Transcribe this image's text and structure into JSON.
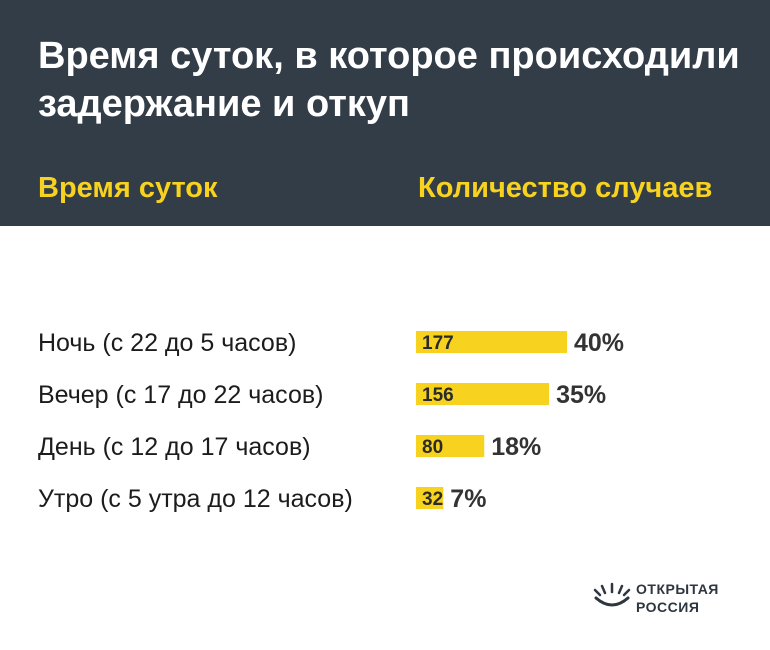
{
  "header": {
    "title": "Время суток, в которое происходили задержание и откуп",
    "col_left": "Время суток",
    "col_right": "Количество случаев"
  },
  "colors": {
    "header_bg": "#333d48",
    "accent": "#f7d21e",
    "bar": "#f7d21e",
    "text": "#1c1c1c"
  },
  "chart_data": {
    "type": "bar",
    "orientation": "horizontal",
    "categories": [
      "Ночь (с 22 до 5 часов)",
      "Вечер (с 17 до 22 часов)",
      "День (с 12 до 17 часов)",
      "Утро (с 5 утра до 12 часов)"
    ],
    "values": [
      177,
      156,
      80,
      32
    ],
    "percent_labels": [
      "40%",
      "35%",
      "18%",
      "7%"
    ],
    "xlabel": "Количество случаев",
    "ylabel": "Время суток",
    "grid": false,
    "legend": "none"
  },
  "logo": {
    "icon": "open-russia-sunrise-icon",
    "line1": "ОТКРЫТАЯ",
    "line2": "РОССИЯ"
  }
}
